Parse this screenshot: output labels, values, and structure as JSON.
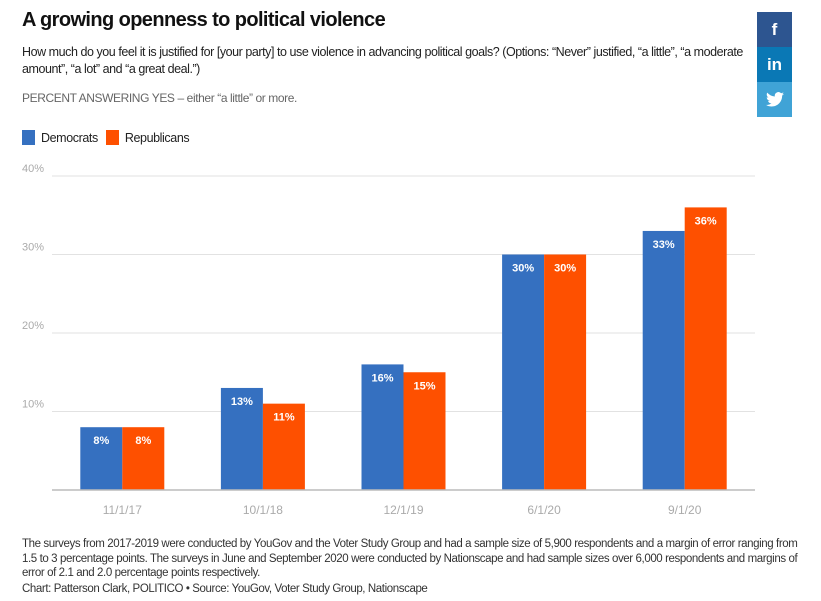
{
  "header": {
    "title": "A growing openness to political violence",
    "subtitle": "How much do you feel it is justified for [your party] to use violence in advancing political goals? (Options: “Never” justified, “a little”, “a moderate amount”, “a lot” and “a great deal.”)",
    "note": "PERCENT ANSWERING YES – either “a little” or more."
  },
  "social": [
    {
      "name": "facebook",
      "glyph": "f",
      "color": "#2d5590"
    },
    {
      "name": "linkedin",
      "glyph": "in",
      "color": "#0a78b5"
    },
    {
      "name": "twitter",
      "glyph": "🐦",
      "color": "#40a3d6"
    }
  ],
  "chart_data": {
    "type": "bar",
    "categories": [
      "11/1/17",
      "10/1/18",
      "12/1/19",
      "6/1/20",
      "9/1/20"
    ],
    "series": [
      {
        "name": "Democrats",
        "color": "#3570c0",
        "values": [
          8,
          13,
          16,
          30,
          33
        ],
        "labels": [
          "8%",
          "13%",
          "16%",
          "30%",
          "33%"
        ]
      },
      {
        "name": "Republicans",
        "color": "#fe5000",
        "values": [
          8,
          11,
          15,
          30,
          36
        ],
        "labels": [
          "8%",
          "11%",
          "15%",
          "30%",
          "36%"
        ]
      }
    ],
    "yticks": [
      10,
      20,
      30,
      40
    ],
    "ytick_labels": [
      "10%",
      "20%",
      "30%",
      "40%"
    ],
    "ylim": [
      0,
      40
    ],
    "grid": true,
    "legend": "top-left"
  },
  "footer": {
    "methodology": "The surveys from 2017-2019 were conducted by YouGov and the Voter Study Group and had a sample size of 5,900 respondents and a margin of error ranging from 1.5 to 3 percentage points. The surveys in June and September 2020 were conducted by Nationscape and had sample sizes over 6,000 respondents and margins of error of 2.1 and 2.0 percentage points respectively.",
    "credit": "Chart: Patterson Clark, POLITICO • Source: YouGov, Voter Study Group, Nationscape"
  }
}
